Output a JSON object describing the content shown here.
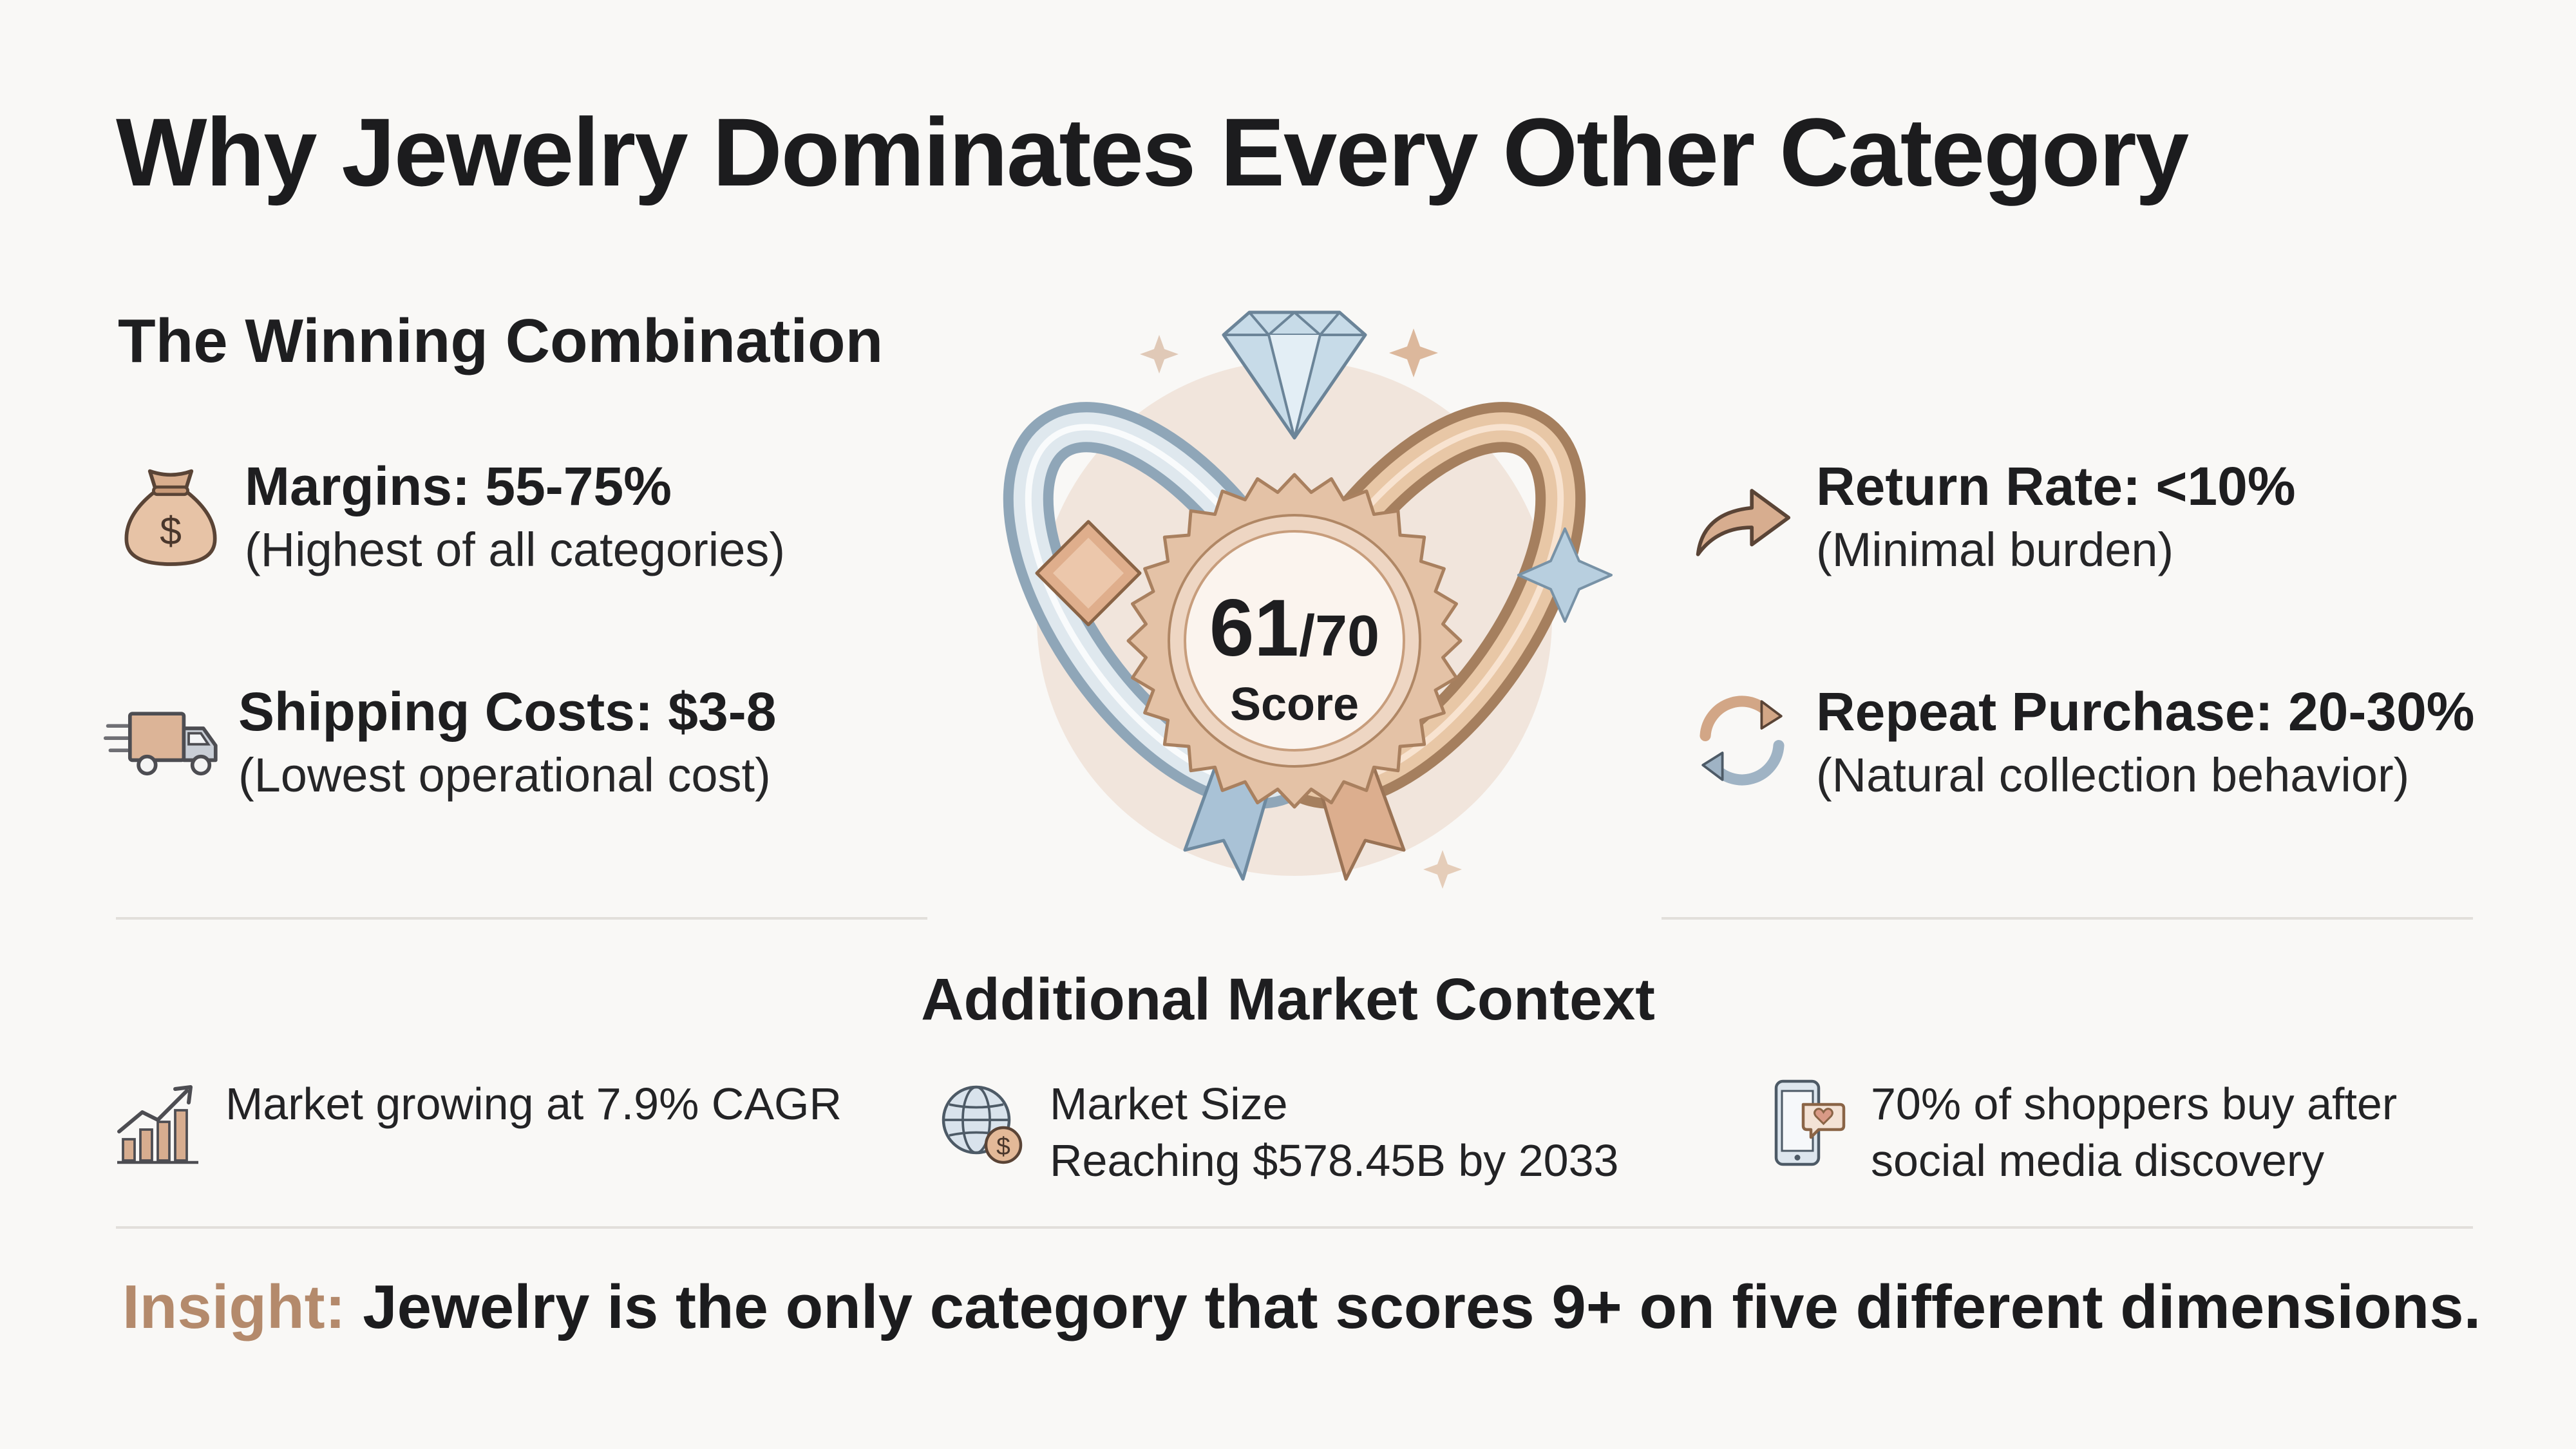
{
  "title": "Why Jewelry Dominates Every Other Category",
  "winning": {
    "heading": "The Winning Combination",
    "items": [
      {
        "label": "Margins: 55-75%",
        "note": "(Highest of all categories)",
        "icon": "money-bag-icon"
      },
      {
        "label": "Shipping Costs: $3-8",
        "note": "(Lowest operational cost)",
        "icon": "delivery-truck-icon"
      },
      {
        "label": "Return Rate: <10%",
        "note": "(Minimal burden)",
        "icon": "return-arrow-icon"
      },
      {
        "label": "Repeat Purchase: 20-30%",
        "note": "(Natural collection behavior)",
        "icon": "repeat-cycle-icon"
      }
    ]
  },
  "score": {
    "value": "61",
    "total": "/70",
    "label": "Score"
  },
  "context": {
    "heading": "Additional Market Context",
    "items": [
      {
        "line1": "Market growing at 7.9% CAGR",
        "line2": "",
        "icon": "growth-chart-icon"
      },
      {
        "line1": "Market Size",
        "line2": "Reaching $578.45B by 2033",
        "icon": "globe-dollar-icon"
      },
      {
        "line1": "70% of shoppers buy after",
        "line2": "social media discovery",
        "icon": "phone-heart-icon"
      }
    ]
  },
  "insight": {
    "lead": "Insight:",
    "text": " Jewelry is the only category that scores 9+ on five different dimensions."
  },
  "colors": {
    "accent": "#b48a6c",
    "text": "#1e1e20",
    "background": "#f9f8f6"
  }
}
